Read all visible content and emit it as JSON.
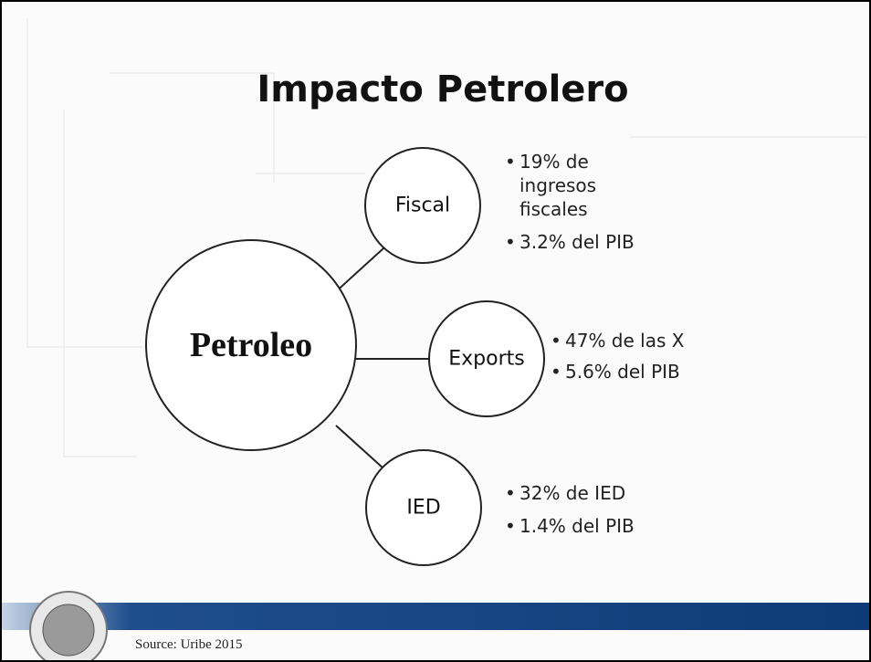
{
  "title": "Impacto Petrolero",
  "center": {
    "label": "Petroleo"
  },
  "nodes": [
    {
      "label": "Fiscal",
      "bullets": [
        "19% de ingresos fiscales",
        "3.2% del PIB"
      ]
    },
    {
      "label": "Exports",
      "bullets": [
        "47% de las X",
        "5.6% del PIB"
      ]
    },
    {
      "label": "IED",
      "bullets": [
        "32% de IED",
        "1.4% del PIB"
      ]
    }
  ],
  "source": "Source: Uribe 2015"
}
